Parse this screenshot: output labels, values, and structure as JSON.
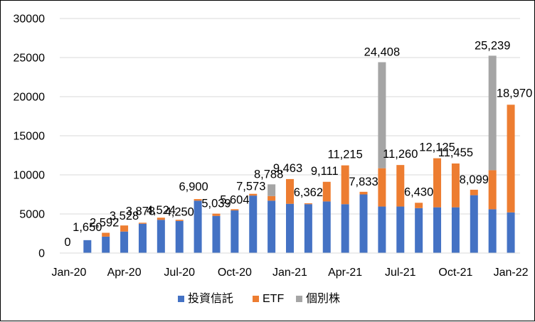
{
  "chart_data": {
    "type": "bar",
    "stacked": true,
    "categories": [
      "Jan-20",
      "Feb-20",
      "Mar-20",
      "Apr-20",
      "May-20",
      "Jun-20",
      "Jul-20",
      "Aug-20",
      "Sep-20",
      "Oct-20",
      "Nov-20",
      "Dec-20",
      "Jan-21",
      "Feb-21",
      "Mar-21",
      "Apr-21",
      "May-21",
      "Jun-21",
      "Jul-21",
      "Aug-21",
      "Sep-21",
      "Oct-21",
      "Nov-21",
      "Dec-21",
      "Jan-22"
    ],
    "x_tick_labels": [
      "Jan-20",
      "",
      "",
      "Apr-20",
      "",
      "",
      "Jul-20",
      "",
      "",
      "Oct-20",
      "",
      "",
      "Jan-21",
      "",
      "",
      "Apr-21",
      "",
      "",
      "Jul-21",
      "",
      "",
      "Oct-21",
      "",
      "",
      "Jan-22"
    ],
    "series": [
      {
        "name": "投資信託",
        "color": "#4472C4",
        "values": [
          0,
          1650,
          2100,
          2750,
          3750,
          4250,
          4100,
          6700,
          4750,
          5450,
          7350,
          6700,
          6300,
          6250,
          6600,
          6250,
          7500,
          5950,
          5950,
          5750,
          5850,
          5850,
          7400,
          5600,
          5200
        ]
      },
      {
        "name": "ETF",
        "color": "#ED7D31",
        "values": [
          0,
          0,
          492,
          778,
          128,
          274,
          150,
          200,
          289,
          154,
          223,
          588,
          3163,
          112,
          2511,
          4965,
          333,
          4900,
          5310,
          680,
          6275,
          5605,
          699,
          5000,
          13770
        ]
      },
      {
        "name": "個別株",
        "color": "#A5A5A5",
        "values": [
          0,
          0,
          0,
          0,
          0,
          0,
          0,
          0,
          0,
          0,
          0,
          1500,
          0,
          0,
          0,
          0,
          0,
          13558,
          0,
          0,
          0,
          0,
          0,
          14639,
          0
        ]
      }
    ],
    "totals": [
      0,
      1650,
      2592,
      3528,
      3878,
      4524,
      4250,
      6900,
      5039,
      5604,
      7573,
      8788,
      9463,
      6362,
      9111,
      11215,
      7833,
      24408,
      11260,
      6430,
      12125,
      11455,
      8099,
      25239,
      18970
    ],
    "data_labels": [
      "0",
      "1,650",
      "2,592",
      "3,528",
      "3,878",
      "4,524",
      "4,250",
      "6,900",
      "5,039",
      "5,604",
      "7,573",
      "8,788",
      "9,463",
      "6,362",
      "9,111",
      "11,215",
      "7,833",
      "24,408",
      "11,260",
      "6,430",
      "12,125",
      "11,455",
      "8,099",
      "25,239",
      "18,970"
    ],
    "ylim": [
      0,
      30000
    ],
    "y_ticks": [
      "0",
      "5000",
      "10000",
      "15000",
      "20000",
      "25000",
      "30000"
    ],
    "grid": true,
    "legend_position": "bottom",
    "title": "",
    "xlabel": "",
    "ylabel": ""
  }
}
